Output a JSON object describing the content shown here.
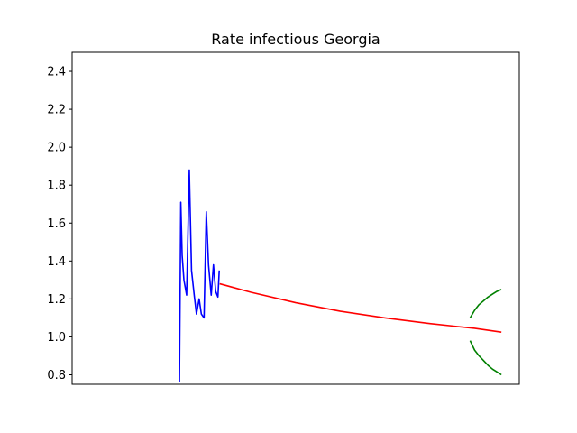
{
  "chart_data": {
    "type": "line",
    "title": "Rate infectious Georgia",
    "xlabel": "",
    "ylabel": "",
    "xlim": [
      0,
      100
    ],
    "ylim": [
      0.75,
      2.5
    ],
    "x_ticks_shown": false,
    "y_ticks": [
      0.8,
      1.0,
      1.2,
      1.4,
      1.6,
      1.8,
      2.0,
      2.2,
      2.4
    ],
    "y_tick_labels": [
      "0.8",
      "1.0",
      "1.2",
      "1.4",
      "1.6",
      "1.8",
      "2.0",
      "2.2",
      "2.4"
    ],
    "grid": false,
    "legend": "none",
    "series": [
      {
        "color": "#0000ff",
        "x": [
          24.0,
          24.3,
          24.6,
          25.0,
          25.6,
          26.2,
          26.7,
          27.3,
          27.8,
          28.4,
          28.9,
          29.5,
          30.0,
          30.5,
          31.1,
          31.6,
          32.1,
          32.6,
          32.9
        ],
        "y": [
          0.76,
          1.71,
          1.43,
          1.3,
          1.22,
          1.88,
          1.35,
          1.22,
          1.12,
          1.2,
          1.12,
          1.1,
          1.66,
          1.38,
          1.22,
          1.38,
          1.24,
          1.21,
          1.35
        ]
      },
      {
        "color": "#ff0000",
        "x": [
          33.0,
          40,
          50,
          60,
          70,
          80,
          90,
          96.0
        ],
        "y": [
          1.28,
          1.235,
          1.18,
          1.135,
          1.1,
          1.07,
          1.045,
          1.025
        ]
      },
      {
        "color": "#008000",
        "x": [
          89.0,
          90,
          91,
          92,
          93,
          94,
          95,
          96.0
        ],
        "y": [
          1.1,
          1.14,
          1.17,
          1.19,
          1.21,
          1.225,
          1.24,
          1.25
        ]
      },
      {
        "color": "#008000",
        "x": [
          89.0,
          90,
          91,
          92,
          93,
          94,
          95,
          96.0
        ],
        "y": [
          0.98,
          0.93,
          0.9,
          0.875,
          0.85,
          0.83,
          0.815,
          0.8
        ]
      }
    ]
  }
}
